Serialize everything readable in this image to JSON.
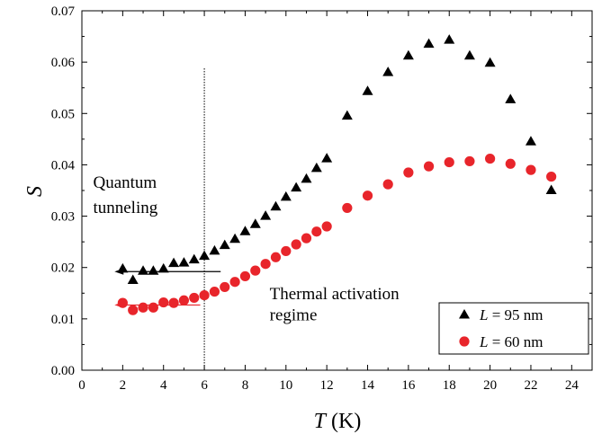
{
  "chart_data": {
    "type": "scatter",
    "xlabel_var": "T",
    "xlabel_unit": " (K)",
    "ylabel_var": "S",
    "xlim": [
      0,
      25
    ],
    "ylim": [
      0,
      0.07
    ],
    "xticks": [
      0,
      2,
      4,
      6,
      8,
      10,
      12,
      14,
      16,
      18,
      20,
      22,
      24
    ],
    "yticks": [
      0.0,
      0.01,
      0.02,
      0.03,
      0.04,
      0.05,
      0.06,
      0.07
    ],
    "ytick_labels": [
      "0.00",
      "0.01",
      "0.02",
      "0.03",
      "0.04",
      "0.05",
      "0.06",
      "0.07"
    ],
    "grid": false,
    "legend_position": "bottom-right",
    "series": [
      {
        "name_var": "L",
        "name_rest": " = 95 nm",
        "marker": "triangle",
        "color": "#000000",
        "x": [
          2,
          2.5,
          3,
          3.5,
          4,
          4.5,
          5,
          5.5,
          6,
          6.5,
          7,
          7.5,
          8,
          8.5,
          9,
          9.5,
          10,
          10.5,
          11,
          11.5,
          12,
          13,
          14,
          15,
          16,
          17,
          18,
          19,
          20,
          21,
          22,
          23
        ],
        "y": [
          0.0197,
          0.0175,
          0.0193,
          0.0193,
          0.0197,
          0.0208,
          0.0209,
          0.0215,
          0.0222,
          0.0232,
          0.0243,
          0.0255,
          0.027,
          0.0284,
          0.03,
          0.0318,
          0.0337,
          0.0355,
          0.0372,
          0.0393,
          0.0412,
          0.0495,
          0.0543,
          0.058,
          0.0612,
          0.0635,
          0.0643,
          0.0612,
          0.0598,
          0.0527,
          0.0445,
          0.035
        ]
      },
      {
        "name_var": "L",
        "name_rest": " = 60 nm",
        "marker": "circle",
        "color": "#e8252b",
        "x": [
          2,
          2.5,
          3,
          3.5,
          4,
          4.5,
          5,
          5.5,
          6,
          6.5,
          7,
          7.5,
          8,
          8.5,
          9,
          9.5,
          10,
          10.5,
          11,
          11.5,
          12,
          13,
          14,
          15,
          16,
          17,
          18,
          19,
          20,
          21,
          22,
          23
        ],
        "y": [
          0.0131,
          0.0117,
          0.0122,
          0.0122,
          0.0132,
          0.0131,
          0.0136,
          0.0141,
          0.0146,
          0.0153,
          0.0162,
          0.0172,
          0.0183,
          0.0194,
          0.0207,
          0.022,
          0.0232,
          0.0245,
          0.0257,
          0.027,
          0.028,
          0.0316,
          0.034,
          0.0362,
          0.0385,
          0.0397,
          0.0405,
          0.0407,
          0.0412,
          0.0402,
          0.039,
          0.0377
        ]
      }
    ],
    "vline": {
      "x": 6,
      "y_top": 0.0588
    },
    "arrows": [
      {
        "x_from": 6.8,
        "x_to": 1.6,
        "y": 0.0192,
        "color": "#000000"
      },
      {
        "x_from": 5.8,
        "x_to": 1.6,
        "y": 0.0127,
        "color": "#e8252b"
      }
    ],
    "annotations": [
      {
        "text": "Quantum",
        "x": 0.55,
        "y": 0.0355
      },
      {
        "text": "tunneling",
        "x": 0.55,
        "y": 0.0306
      },
      {
        "text": "Thermal activation",
        "x": 9.2,
        "y": 0.0138
      },
      {
        "text": "regime",
        "x": 9.2,
        "y": 0.0097
      }
    ]
  }
}
